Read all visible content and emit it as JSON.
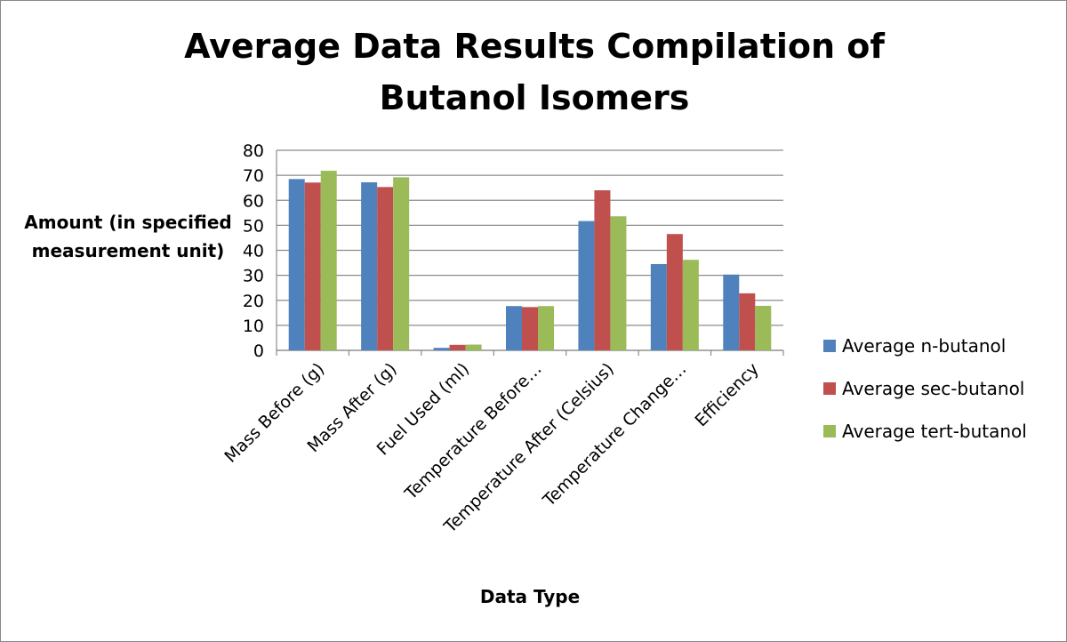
{
  "chart_data": {
    "type": "bar",
    "title": "Average Data Results Compilation of Butanol Isomers",
    "xlabel": "Data Type",
    "ylabel": "Amount (in specified measurement unit)",
    "ylim": [
      0,
      80
    ],
    "yticks": [
      "0",
      "10",
      "20",
      "30",
      "40",
      "50",
      "60",
      "70",
      "80"
    ],
    "grid": true,
    "legend_position": "right",
    "categories": [
      "Mass Before (g)",
      "Mass After (g)",
      "Fuel Used (ml)",
      "Temperature Before…",
      "Temperature After (Celsius)",
      "Temperature Change…",
      "Efficiency"
    ],
    "series": [
      {
        "name": "Average n-butanol",
        "color": "#4f81bd",
        "values": [
          68.5,
          67.2,
          1.0,
          17.7,
          51.7,
          34.5,
          30.3
        ]
      },
      {
        "name": "Average sec-butanol",
        "color": "#c0504d",
        "values": [
          67.1,
          65.3,
          2.2,
          17.3,
          64.0,
          46.5,
          22.8
        ]
      },
      {
        "name": "Average tert-butanol",
        "color": "#9bbb59",
        "values": [
          71.8,
          69.2,
          2.3,
          17.7,
          53.6,
          36.2,
          17.8
        ]
      }
    ]
  }
}
